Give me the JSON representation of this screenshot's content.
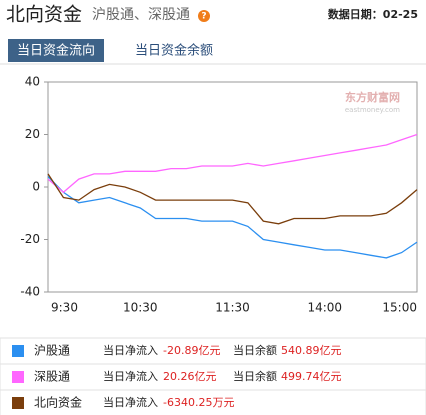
{
  "header": {
    "title": "北向资金",
    "subtitle": "沪股通、深股通",
    "help_icon": "?",
    "date_label": "数据日期：02-25"
  },
  "tabs": [
    {
      "label": "当日资金流向",
      "selected": true
    },
    {
      "label": "当日资金余额",
      "selected": false
    }
  ],
  "watermark": {
    "brand": "东方财富网",
    "site": "eastmoney.com"
  },
  "chart_data": {
    "type": "line",
    "categories": [
      "9:30",
      null,
      null,
      null,
      null,
      null,
      "10:30",
      null,
      null,
      null,
      null,
      null,
      "11:30",
      null,
      null,
      null,
      null,
      null,
      "14:00",
      null,
      null,
      null,
      null,
      null,
      "15:00"
    ],
    "series": [
      {
        "name": "沪股通",
        "color": "#2b8ff0",
        "values": [
          4,
          -2,
          -6,
          -5,
          -4,
          -6,
          -8,
          -12,
          -12,
          -12,
          -13,
          -13,
          -13,
          -15,
          -20,
          -21,
          -22,
          -23,
          -24,
          -24,
          -25,
          -26,
          -27,
          -25,
          -21
        ]
      },
      {
        "name": "深股通",
        "color": "#ff66ff",
        "values": [
          3,
          -2,
          3,
          5,
          5,
          6,
          6,
          6,
          7,
          7,
          8,
          8,
          8,
          9,
          8,
          9,
          10,
          11,
          12,
          13,
          14,
          15,
          16,
          18,
          20
        ]
      },
      {
        "name": "北向资金",
        "color": "#7a3e0c",
        "values": [
          5,
          -4,
          -5,
          -1,
          1,
          0,
          -2,
          -5,
          -5,
          -5,
          -5,
          -5,
          -5,
          -6,
          -13,
          -14,
          -12,
          -12,
          -12,
          -11,
          -11,
          -11,
          -10,
          -6,
          -1
        ]
      }
    ],
    "ylim": [
      -40,
      40
    ],
    "yticks": [
      40,
      20,
      0,
      -20,
      -40
    ],
    "grid": false
  },
  "summary": [
    {
      "inflow_label": "当日净流入",
      "inflow": "-20.89亿元",
      "balance_label": "当日余额",
      "balance": "540.89亿元"
    },
    {
      "inflow_label": "当日净流入",
      "inflow": "20.26亿元",
      "balance_label": "当日余额",
      "balance": "499.74亿元"
    },
    {
      "inflow_label": "当日净流入",
      "inflow": "-6340.25万元"
    }
  ]
}
